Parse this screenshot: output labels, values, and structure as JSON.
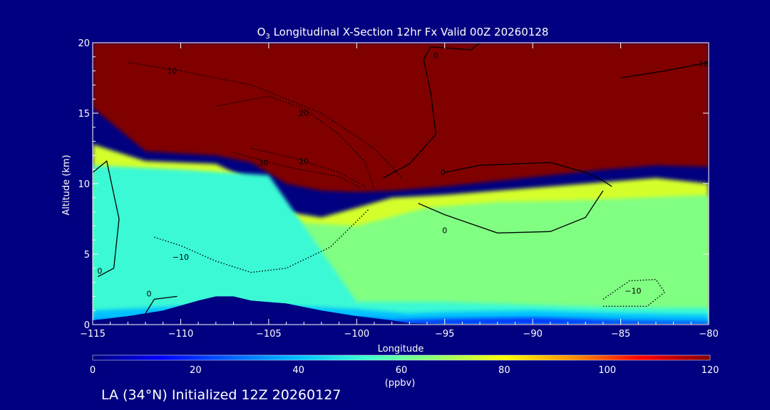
{
  "chart_data": {
    "type": "heatmap",
    "title_prefix": "O",
    "title_subscript": "3",
    "title_rest": " Longitudinal X-Section 12hr  Fx Valid 00Z 20260128",
    "xlabel": "Longitude",
    "ylabel": "Altitude (km)",
    "xlim": [
      -115,
      -80
    ],
    "ylim": [
      0,
      20
    ],
    "x_ticks": [
      -115,
      -110,
      -105,
      -100,
      -95,
      -90,
      -85,
      -80
    ],
    "x_tick_labels": [
      "−115",
      "−110",
      "−105",
      "−100",
      "−95",
      "−90",
      "−85",
      "−80"
    ],
    "y_ticks": [
      0,
      5,
      10,
      15,
      20
    ],
    "y_tick_labels": [
      "0",
      "5",
      "10",
      "15",
      "20"
    ],
    "colorbar": {
      "label": "(ppbv)",
      "range": [
        0,
        120
      ],
      "ticks": [
        0,
        20,
        40,
        60,
        80,
        100,
        120
      ],
      "tick_labels": [
        "0",
        "20",
        "40",
        "60",
        "80",
        "100",
        "120"
      ],
      "colors": [
        "#000080",
        "#0000ff",
        "#0060ff",
        "#00c0ff",
        "#40ffd0",
        "#90ff70",
        "#ffff00",
        "#ff9000",
        "#ff0000",
        "#800000"
      ]
    },
    "ozone_regions": [
      {
        "name": "stratosphere",
        "value": 120,
        "x": [
          -115,
          -112,
          -108,
          -106,
          -104,
          -102,
          -100,
          -98,
          -95,
          -92,
          -89,
          -86,
          -83,
          -80,
          -80,
          -115
        ],
        "y": [
          15.4,
          12.3,
          12.0,
          11.5,
          10.0,
          9.5,
          9.4,
          9.5,
          9.8,
          10.2,
          10.6,
          11.0,
          11.3,
          11.2,
          20,
          20
        ]
      },
      {
        "name": "upper-troposphere",
        "value": 75,
        "x": [
          -115,
          -112,
          -108,
          -106,
          -104,
          -102,
          -100,
          -98,
          -95,
          -92,
          -89,
          -86,
          -83,
          -80,
          -80,
          -115
        ],
        "y": [
          12.8,
          11.6,
          11.4,
          10.2,
          8.0,
          7.6,
          8.3,
          9.0,
          9.2,
          9.5,
          9.8,
          10.1,
          10.4,
          10.0,
          0,
          0
        ]
      },
      {
        "name": "mid-troposphere",
        "value": 64,
        "x": [
          -115,
          -109,
          -106,
          -103,
          -100,
          -96,
          -92,
          -88,
          -84,
          -80,
          -80,
          -115
        ],
        "y": [
          9.5,
          9.8,
          9.0,
          7.2,
          7.0,
          8.3,
          8.7,
          8.8,
          9.0,
          9.2,
          0,
          0
        ]
      },
      {
        "name": "lower-troposphere",
        "value": 52,
        "x": [
          -115,
          -110,
          -105,
          -100,
          -95,
          -90,
          -85,
          -80,
          -80,
          -115
        ],
        "y": [
          11.3,
          11.0,
          10.6,
          1.6,
          1.6,
          1.4,
          1.2,
          1.2,
          0,
          0
        ]
      },
      {
        "name": "boundary-layer",
        "value": 40,
        "x": [
          -115,
          -110,
          -105,
          -100,
          -97,
          -95,
          -90,
          -85,
          -80,
          -80,
          -115
        ],
        "y": [
          1.0,
          1.3,
          1.4,
          1.1,
          0.8,
          0.9,
          1.0,
          0.8,
          0.7,
          0,
          0
        ]
      },
      {
        "name": "surface-layer",
        "value": 20,
        "x": [
          -115,
          -105,
          -100,
          -98,
          -95,
          -90,
          -85,
          -80,
          -80,
          -115
        ],
        "y": [
          0.3,
          0.6,
          0.5,
          0.3,
          0.4,
          0.5,
          0.3,
          0.2,
          0,
          0
        ]
      }
    ],
    "terrain": {
      "x": [
        -115,
        -113,
        -111,
        -109,
        -108,
        -107,
        -106,
        -104,
        -102,
        -100,
        -98,
        -97,
        -95,
        -90,
        -85,
        -80,
        -80,
        -115
      ],
      "y": [
        0.3,
        0.6,
        1.0,
        1.7,
        2.0,
        2.0,
        1.7,
        1.5,
        1.0,
        0.6,
        0.3,
        0.1,
        0.05,
        0.05,
        0.05,
        0.05,
        0,
        0
      ]
    },
    "contours": [
      {
        "level": 10,
        "label": "10",
        "style": "dotted",
        "x": [
          -113,
          -110,
          -106,
          -102,
          -99,
          -97.5
        ],
        "y": [
          18.6,
          18.0,
          17.0,
          15.0,
          12.5,
          10.5
        ],
        "label_at": [
          -110.5,
          17.8
        ]
      },
      {
        "level": 20,
        "label": "20",
        "style": "dotted",
        "x": [
          -108,
          -105,
          -103,
          -101,
          -99.5,
          -99
        ],
        "y": [
          15.5,
          16.2,
          15.3,
          13.5,
          11.5,
          9.6
        ],
        "label_at": [
          -103,
          14.8
        ]
      },
      {
        "level": 30,
        "label": "30",
        "style": "dotted",
        "x": [
          -107,
          -104,
          -101,
          -99.8
        ],
        "y": [
          12.2,
          11.2,
          10.5,
          9.7
        ],
        "label_at": [
          -105.3,
          11.3
        ]
      },
      {
        "level": 20,
        "label": "20",
        "style": "dotted",
        "x": [
          -106,
          -103.5,
          -101,
          -99.5
        ],
        "y": [
          12.5,
          11.8,
          10.8,
          9.8
        ],
        "label_at": [
          -103,
          11.4
        ]
      },
      {
        "level": -10,
        "label": "−10",
        "style": "dotted",
        "x": [
          -111.5,
          -110,
          -108,
          -106,
          -104,
          -101.5,
          -99.3
        ],
        "y": [
          6.2,
          5.6,
          4.5,
          3.7,
          4.0,
          5.5,
          8.2
        ],
        "label_at": [
          -110,
          4.6
        ]
      },
      {
        "level": 0,
        "label": "0",
        "style": "solid",
        "x": [
          -98.5,
          -97,
          -95.5,
          -95.8,
          -96.2,
          -95.8,
          -93.5,
          -93
        ],
        "y": [
          10.4,
          11.4,
          13.5,
          16.5,
          18.8,
          19.7,
          19.5,
          20
        ],
        "label_at": [
          -95.5,
          18.9
        ]
      },
      {
        "level": 0,
        "label": "0",
        "style": "solid",
        "x": [
          -95,
          -93,
          -89,
          -87,
          -86,
          -85.5
        ],
        "y": [
          10.8,
          11.3,
          11.5,
          10.8,
          10.2,
          9.8
        ],
        "label_at": [
          -95.1,
          10.6
        ]
      },
      {
        "level": 0,
        "label": "0",
        "style": "solid",
        "x": [
          -96.5,
          -95,
          -92,
          -89,
          -87,
          -86
        ],
        "y": [
          8.6,
          7.8,
          6.5,
          6.6,
          7.6,
          9.5
        ],
        "label_at": [
          -95,
          6.5
        ]
      },
      {
        "level": 0,
        "label": "0",
        "style": "solid",
        "x": [
          -115,
          -114.2,
          -113.5,
          -113.8,
          -114.7
        ],
        "y": [
          10.8,
          11.6,
          7.5,
          4.0,
          3.4
        ],
        "label_at": [
          -114.6,
          3.6
        ]
      },
      {
        "level": -10,
        "label": "−10",
        "style": "dotted",
        "x": [
          -86,
          -84.5,
          -83,
          -82.5,
          -83.5,
          -86
        ],
        "y": [
          1.8,
          3.1,
          3.2,
          2.3,
          1.3,
          1.3
        ],
        "label_at": [
          -84.3,
          2.2
        ]
      },
      {
        "level": 10,
        "label": "10",
        "style": "solid",
        "x": [
          -85,
          -82.5,
          -80
        ],
        "y": [
          17.5,
          18.0,
          18.6
        ],
        "label_at": [
          -80.3,
          18.3
        ]
      },
      {
        "level": 0,
        "label": "0",
        "style": "solid",
        "x": [
          -112,
          -111.5,
          -110.2
        ],
        "y": [
          0.8,
          1.8,
          2.0
        ],
        "label_at": [
          -111.8,
          2.0
        ]
      }
    ]
  },
  "footer": {
    "text": "LA (34°N) Initialized 12Z 20260127"
  }
}
